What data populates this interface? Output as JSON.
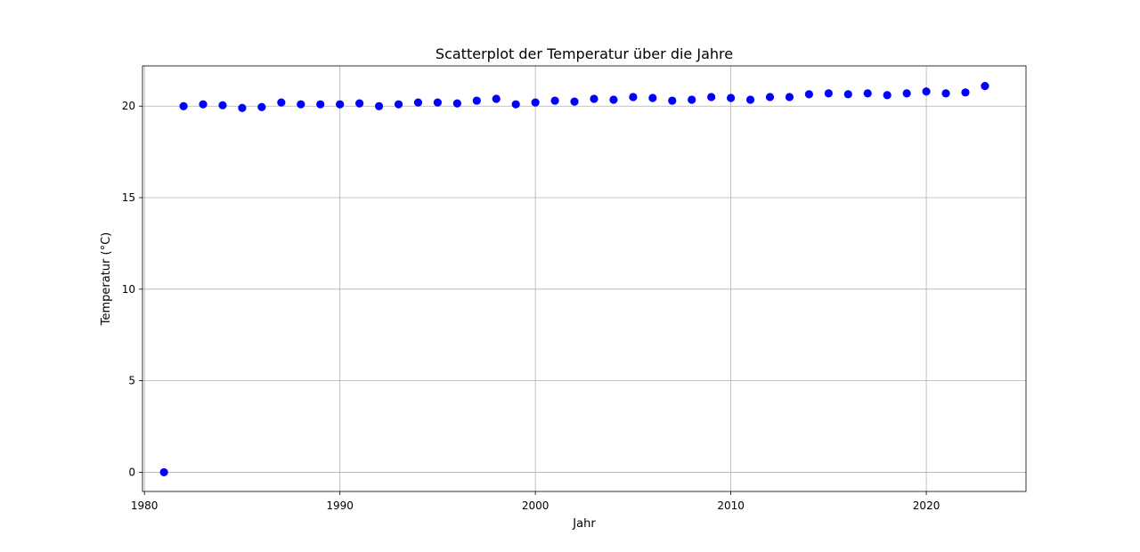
{
  "chart_data": {
    "type": "scatter",
    "title": "Scatterplot der Temperatur über die Jahre",
    "xlabel": "Jahr",
    "ylabel": "Temperatur (°C)",
    "xlim": [
      1979.9,
      2025.1
    ],
    "ylim": [
      -1.05,
      22.2
    ],
    "xticks": [
      1980,
      1990,
      2000,
      2010,
      2020
    ],
    "yticks": [
      0,
      5,
      10,
      15,
      20
    ],
    "grid": true,
    "marker_color": "#0000ff",
    "series": [
      {
        "x": [
          1981,
          1982,
          1983,
          1984,
          1985,
          1986,
          1987,
          1988,
          1989,
          1990,
          1991,
          1992,
          1993,
          1994,
          1995,
          1996,
          1997,
          1998,
          1999,
          2000,
          2001,
          2002,
          2003,
          2004,
          2005,
          2006,
          2007,
          2008,
          2009,
          2010,
          2011,
          2012,
          2013,
          2014,
          2015,
          2016,
          2017,
          2018,
          2019,
          2020,
          2021,
          2022,
          2023
        ],
        "y": [
          0.0,
          20.0,
          20.1,
          20.05,
          19.9,
          19.95,
          20.2,
          20.1,
          20.1,
          20.1,
          20.15,
          20.0,
          20.1,
          20.2,
          20.2,
          20.15,
          20.3,
          20.4,
          20.1,
          20.2,
          20.3,
          20.25,
          20.4,
          20.35,
          20.5,
          20.45,
          20.3,
          20.35,
          20.5,
          20.45,
          20.35,
          20.5,
          20.5,
          20.65,
          20.7,
          20.65,
          20.7,
          20.6,
          20.7,
          20.8,
          20.7,
          20.75,
          21.1
        ]
      }
    ]
  }
}
